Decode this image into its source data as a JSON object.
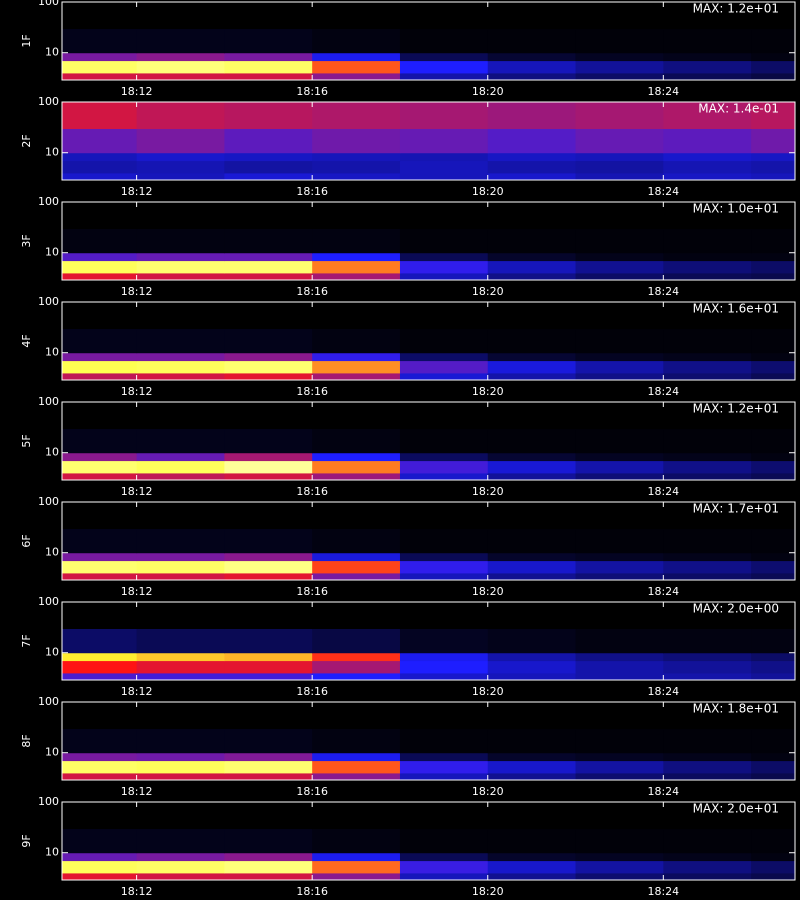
{
  "chart_data": [
    {
      "type": "heatmap",
      "ylabel": "1F",
      "annotation": "MAX: 1.2e+01",
      "log_y": true,
      "xlim": [
        1090.3,
        1107
      ],
      "xticks": [
        {
          "value": 1092,
          "label": "18:12"
        },
        {
          "value": 1096,
          "label": "18:16"
        },
        {
          "value": 1100,
          "label": "18:20"
        },
        {
          "value": 1104,
          "label": "18:24"
        }
      ],
      "ylim": [
        2.9,
        100
      ],
      "yticks": [
        10,
        100
      ],
      "x_bins": [
        1090.3,
        1092,
        1094,
        1096,
        1098,
        1100,
        1102,
        1104,
        1106,
        1107
      ],
      "y_bins": [
        2.9,
        4,
        7,
        10,
        30,
        100
      ],
      "z": [
        [
          0.5,
          0.5,
          0.5,
          0.42,
          0.2,
          0.15,
          0.12,
          0.1,
          0.08
        ],
        [
          0.85,
          0.87,
          0.85,
          0.62,
          0.3,
          0.22,
          0.18,
          0.15,
          0.12
        ],
        [
          0.4,
          0.42,
          0.4,
          0.28,
          0.1,
          0.06,
          0.04,
          0.03,
          0.02
        ],
        [
          0.03,
          0.03,
          0.03,
          0.02,
          0.01,
          0.01,
          0.01,
          0.01,
          0.01
        ],
        [
          0,
          0,
          0,
          0,
          0,
          0,
          0,
          0,
          0
        ]
      ]
    },
    {
      "type": "heatmap",
      "ylabel": "2F",
      "annotation": "MAX: 1.4e-01",
      "log_y": true,
      "xlim": [
        1090.3,
        1107
      ],
      "xticks": [
        {
          "value": 1092,
          "label": "18:12"
        },
        {
          "value": 1096,
          "label": "18:16"
        },
        {
          "value": 1100,
          "label": "18:20"
        },
        {
          "value": 1104,
          "label": "18:24"
        }
      ],
      "ylim": [
        2.9,
        100
      ],
      "yticks": [
        10,
        100
      ],
      "x_bins": [
        1090.3,
        1092,
        1094,
        1096,
        1098,
        1100,
        1102,
        1104,
        1106,
        1107
      ],
      "y_bins": [
        2.9,
        4,
        7,
        10,
        30,
        100
      ],
      "z": [
        [
          0.24,
          0.22,
          0.25,
          0.23,
          0.22,
          0.24,
          0.21,
          0.23,
          0.22
        ],
        [
          0.2,
          0.21,
          0.19,
          0.2,
          0.22,
          0.2,
          0.19,
          0.21,
          0.2
        ],
        [
          0.22,
          0.24,
          0.23,
          0.22,
          0.21,
          0.23,
          0.22,
          0.24,
          0.23
        ],
        [
          0.38,
          0.4,
          0.37,
          0.39,
          0.38,
          0.36,
          0.38,
          0.37,
          0.39
        ],
        [
          0.5,
          0.48,
          0.47,
          0.46,
          0.45,
          0.44,
          0.45,
          0.46,
          0.47
        ]
      ]
    },
    {
      "type": "heatmap",
      "ylabel": "3F",
      "annotation": "MAX: 1.0e+01",
      "log_y": true,
      "xlim": [
        1090.3,
        1107
      ],
      "xticks": [
        {
          "value": 1092,
          "label": "18:12"
        },
        {
          "value": 1096,
          "label": "18:16"
        },
        {
          "value": 1100,
          "label": "18:20"
        },
        {
          "value": 1104,
          "label": "18:24"
        }
      ],
      "ylim": [
        2.9,
        100
      ],
      "yticks": [
        10,
        100
      ],
      "x_bins": [
        1090.3,
        1092,
        1094,
        1096,
        1098,
        1100,
        1102,
        1104,
        1106,
        1107
      ],
      "y_bins": [
        2.9,
        4,
        7,
        10,
        30,
        100
      ],
      "z": [
        [
          0.52,
          0.5,
          0.5,
          0.45,
          0.22,
          0.16,
          0.12,
          0.1,
          0.09
        ],
        [
          0.84,
          0.86,
          0.86,
          0.66,
          0.32,
          0.22,
          0.17,
          0.14,
          0.12
        ],
        [
          0.36,
          0.38,
          0.38,
          0.3,
          0.1,
          0.05,
          0.03,
          0.02,
          0.02
        ],
        [
          0.02,
          0.02,
          0.02,
          0.02,
          0.01,
          0.01,
          0.01,
          0.01,
          0.01
        ],
        [
          0,
          0,
          0,
          0,
          0,
          0,
          0,
          0,
          0
        ]
      ]
    },
    {
      "type": "heatmap",
      "ylabel": "4F",
      "annotation": "MAX: 1.6e+01",
      "log_y": true,
      "xlim": [
        1090.3,
        1107
      ],
      "xticks": [
        {
          "value": 1092,
          "label": "18:12"
        },
        {
          "value": 1096,
          "label": "18:16"
        },
        {
          "value": 1100,
          "label": "18:20"
        },
        {
          "value": 1104,
          "label": "18:24"
        }
      ],
      "ylim": [
        2.9,
        100
      ],
      "yticks": [
        10,
        100
      ],
      "x_bins": [
        1090.3,
        1092,
        1094,
        1096,
        1098,
        1100,
        1102,
        1104,
        1106,
        1107
      ],
      "y_bins": [
        2.9,
        4,
        7,
        10,
        30,
        100
      ],
      "z": [
        [
          0.48,
          0.5,
          0.52,
          0.45,
          0.25,
          0.2,
          0.16,
          0.13,
          0.1
        ],
        [
          0.83,
          0.84,
          0.86,
          0.68,
          0.36,
          0.26,
          0.2,
          0.16,
          0.13
        ],
        [
          0.4,
          0.4,
          0.42,
          0.32,
          0.12,
          0.06,
          0.04,
          0.03,
          0.02
        ],
        [
          0.03,
          0.03,
          0.03,
          0.02,
          0.01,
          0.01,
          0.01,
          0.01,
          0.01
        ],
        [
          0,
          0,
          0,
          0,
          0,
          0,
          0,
          0,
          0
        ]
      ]
    },
    {
      "type": "heatmap",
      "ylabel": "5F",
      "annotation": "MAX: 1.2e+01",
      "log_y": true,
      "xlim": [
        1090.3,
        1107
      ],
      "xticks": [
        {
          "value": 1092,
          "label": "18:12"
        },
        {
          "value": 1096,
          "label": "18:16"
        },
        {
          "value": 1100,
          "label": "18:20"
        },
        {
          "value": 1104,
          "label": "18:24"
        }
      ],
      "ylim": [
        2.9,
        100
      ],
      "yticks": [
        10,
        100
      ],
      "x_bins": [
        1090.3,
        1092,
        1094,
        1096,
        1098,
        1100,
        1102,
        1104,
        1106,
        1107
      ],
      "y_bins": [
        2.9,
        4,
        7,
        10,
        30,
        100
      ],
      "z": [
        [
          0.5,
          0.48,
          0.5,
          0.44,
          0.24,
          0.18,
          0.14,
          0.12,
          0.1
        ],
        [
          0.86,
          0.84,
          0.9,
          0.66,
          0.34,
          0.25,
          0.2,
          0.16,
          0.13
        ],
        [
          0.42,
          0.38,
          0.45,
          0.3,
          0.11,
          0.06,
          0.04,
          0.03,
          0.02
        ],
        [
          0.03,
          0.03,
          0.03,
          0.02,
          0.01,
          0.01,
          0.01,
          0.01,
          0.01
        ],
        [
          0,
          0,
          0,
          0,
          0,
          0,
          0,
          0,
          0
        ]
      ]
    },
    {
      "type": "heatmap",
      "ylabel": "6F",
      "annotation": "MAX: 1.7e+01",
      "log_y": true,
      "xlim": [
        1090.3,
        1107
      ],
      "xticks": [
        {
          "value": 1092,
          "label": "18:12"
        },
        {
          "value": 1096,
          "label": "18:16"
        },
        {
          "value": 1100,
          "label": "18:20"
        },
        {
          "value": 1104,
          "label": "18:24"
        }
      ],
      "ylim": [
        2.9,
        100
      ],
      "yticks": [
        10,
        100
      ],
      "x_bins": [
        1090.3,
        1092,
        1094,
        1096,
        1098,
        1100,
        1102,
        1104,
        1106,
        1107
      ],
      "y_bins": [
        2.9,
        4,
        7,
        10,
        30,
        100
      ],
      "z": [
        [
          0.5,
          0.5,
          0.52,
          0.4,
          0.22,
          0.17,
          0.14,
          0.12,
          0.1
        ],
        [
          0.86,
          0.85,
          0.88,
          0.6,
          0.32,
          0.24,
          0.19,
          0.16,
          0.13
        ],
        [
          0.4,
          0.4,
          0.42,
          0.26,
          0.1,
          0.05,
          0.04,
          0.03,
          0.02
        ],
        [
          0.03,
          0.03,
          0.03,
          0.02,
          0.01,
          0.01,
          0.01,
          0.01,
          0.01
        ],
        [
          0,
          0,
          0,
          0,
          0,
          0,
          0,
          0,
          0
        ]
      ]
    },
    {
      "type": "heatmap",
      "ylabel": "7F",
      "annotation": "MAX: 2.0e+00",
      "log_y": true,
      "xlim": [
        1090.3,
        1107
      ],
      "xticks": [
        {
          "value": 1092,
          "label": "18:12"
        },
        {
          "value": 1096,
          "label": "18:16"
        },
        {
          "value": 1100,
          "label": "18:20"
        },
        {
          "value": 1104,
          "label": "18:24"
        }
      ],
      "ylim": [
        2.9,
        100
      ],
      "yticks": [
        10,
        100
      ],
      "x_bins": [
        1090.3,
        1092,
        1094,
        1096,
        1098,
        1100,
        1102,
        1104,
        1106,
        1107
      ],
      "y_bins": [
        2.9,
        4,
        7,
        10,
        30,
        100
      ],
      "z": [
        [
          0.35,
          0.34,
          0.34,
          0.3,
          0.24,
          0.22,
          0.2,
          0.2,
          0.18
        ],
        [
          0.55,
          0.52,
          0.52,
          0.45,
          0.3,
          0.24,
          0.2,
          0.18,
          0.16
        ],
        [
          0.78,
          0.74,
          0.72,
          0.58,
          0.28,
          0.2,
          0.16,
          0.14,
          0.12
        ],
        [
          0.12,
          0.1,
          0.1,
          0.08,
          0.04,
          0.03,
          0.02,
          0.02,
          0.02
        ],
        [
          0,
          0,
          0,
          0,
          0,
          0,
          0,
          0,
          0
        ]
      ]
    },
    {
      "type": "heatmap",
      "ylabel": "8F",
      "annotation": "MAX: 1.8e+01",
      "log_y": true,
      "xlim": [
        1090.3,
        1107
      ],
      "xticks": [
        {
          "value": 1092,
          "label": "18:12"
        },
        {
          "value": 1096,
          "label": "18:16"
        },
        {
          "value": 1100,
          "label": "18:20"
        },
        {
          "value": 1104,
          "label": "18:24"
        }
      ],
      "ylim": [
        2.9,
        100
      ],
      "yticks": [
        10,
        100
      ],
      "x_bins": [
        1090.3,
        1092,
        1094,
        1096,
        1098,
        1100,
        1102,
        1104,
        1106,
        1107
      ],
      "y_bins": [
        2.9,
        4,
        7,
        10,
        30,
        100
      ],
      "z": [
        [
          0.5,
          0.5,
          0.5,
          0.42,
          0.22,
          0.17,
          0.13,
          0.11,
          0.09
        ],
        [
          0.85,
          0.84,
          0.86,
          0.62,
          0.32,
          0.24,
          0.19,
          0.15,
          0.12
        ],
        [
          0.4,
          0.39,
          0.41,
          0.28,
          0.1,
          0.05,
          0.04,
          0.03,
          0.02
        ],
        [
          0.03,
          0.03,
          0.03,
          0.02,
          0.01,
          0.01,
          0.01,
          0.01,
          0.01
        ],
        [
          0,
          0,
          0,
          0,
          0,
          0,
          0,
          0,
          0
        ]
      ]
    },
    {
      "type": "heatmap",
      "ylabel": "9F",
      "annotation": "MAX: 2.0e+01",
      "log_y": true,
      "xlim": [
        1090.3,
        1107
      ],
      "xticks": [
        {
          "value": 1092,
          "label": "18:12"
        },
        {
          "value": 1096,
          "label": "18:16"
        },
        {
          "value": 1100,
          "label": "18:20"
        },
        {
          "value": 1104,
          "label": "18:24"
        }
      ],
      "ylim": [
        2.9,
        100
      ],
      "yticks": [
        10,
        100
      ],
      "x_bins": [
        1090.3,
        1092,
        1094,
        1096,
        1098,
        1100,
        1102,
        1104,
        1106,
        1107
      ],
      "y_bins": [
        2.9,
        4,
        7,
        10,
        30,
        100
      ],
      "z": [
        [
          0.52,
          0.5,
          0.5,
          0.42,
          0.22,
          0.17,
          0.13,
          0.11,
          0.09
        ],
        [
          0.84,
          0.85,
          0.87,
          0.64,
          0.33,
          0.24,
          0.19,
          0.15,
          0.12
        ],
        [
          0.38,
          0.4,
          0.42,
          0.28,
          0.1,
          0.05,
          0.04,
          0.03,
          0.02
        ],
        [
          0.03,
          0.03,
          0.03,
          0.02,
          0.01,
          0.01,
          0.01,
          0.01,
          0.01
        ],
        [
          0,
          0,
          0,
          0,
          0,
          0,
          0,
          0,
          0
        ]
      ]
    }
  ]
}
